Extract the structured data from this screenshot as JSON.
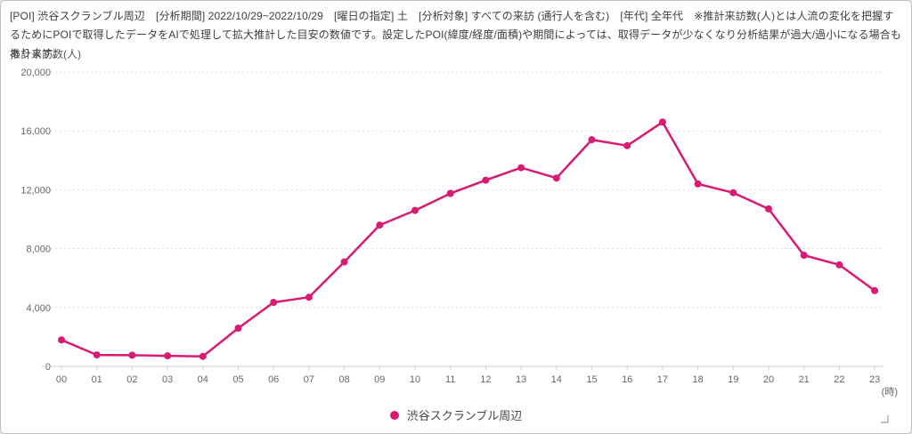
{
  "header": {
    "info_text": "[POI] 渋谷スクランブル周辺　[分析期間] 2022/10/29~2022/10/29　[曜日の指定] 土　[分析対象] すべての来訪 (通行人を含む)　[年代] 全年代　※推計来訪数(人)とは人流の変化を把握するためにPOIで取得したデータをAIで処理して拡大推計した目安の数値です。設定したPOI(緯度/経度/面積)や期間によっては、取得データが少なくなり分析結果が過大/過小になる場合もあります。"
  },
  "chart_data": {
    "type": "line",
    "title": "",
    "ylabel": "推計来訪数(人)",
    "x_unit": "(時)",
    "categories": [
      "00",
      "01",
      "02",
      "03",
      "04",
      "05",
      "06",
      "07",
      "08",
      "09",
      "10",
      "11",
      "12",
      "13",
      "14",
      "15",
      "16",
      "17",
      "18",
      "19",
      "20",
      "21",
      "22",
      "23"
    ],
    "series": [
      {
        "name": "渋谷スクランブル周辺",
        "values": [
          1800,
          780,
          760,
          720,
          680,
          2600,
          4350,
          4700,
          7100,
          9600,
          10600,
          11750,
          12650,
          13500,
          12800,
          15400,
          15000,
          16600,
          12400,
          11800,
          10700,
          7550,
          6900,
          5150
        ]
      }
    ],
    "ylim": [
      0,
      20000
    ],
    "yticks": [
      0,
      4000,
      8000,
      12000,
      16000,
      20000
    ],
    "grid": true,
    "legend_position": "bottom"
  },
  "legend": {
    "label": "渋谷スクランブル周辺"
  },
  "colors": {
    "series": "#d91a73",
    "gridline": "#dddddd",
    "axis_line": "#cccccc",
    "tick_label": "#666666",
    "header_text": "#3d3d3d",
    "legend_text": "#444444",
    "resize_handle": "#999999",
    "background": "#ffffff",
    "panel_border": "#bfbfbf"
  }
}
